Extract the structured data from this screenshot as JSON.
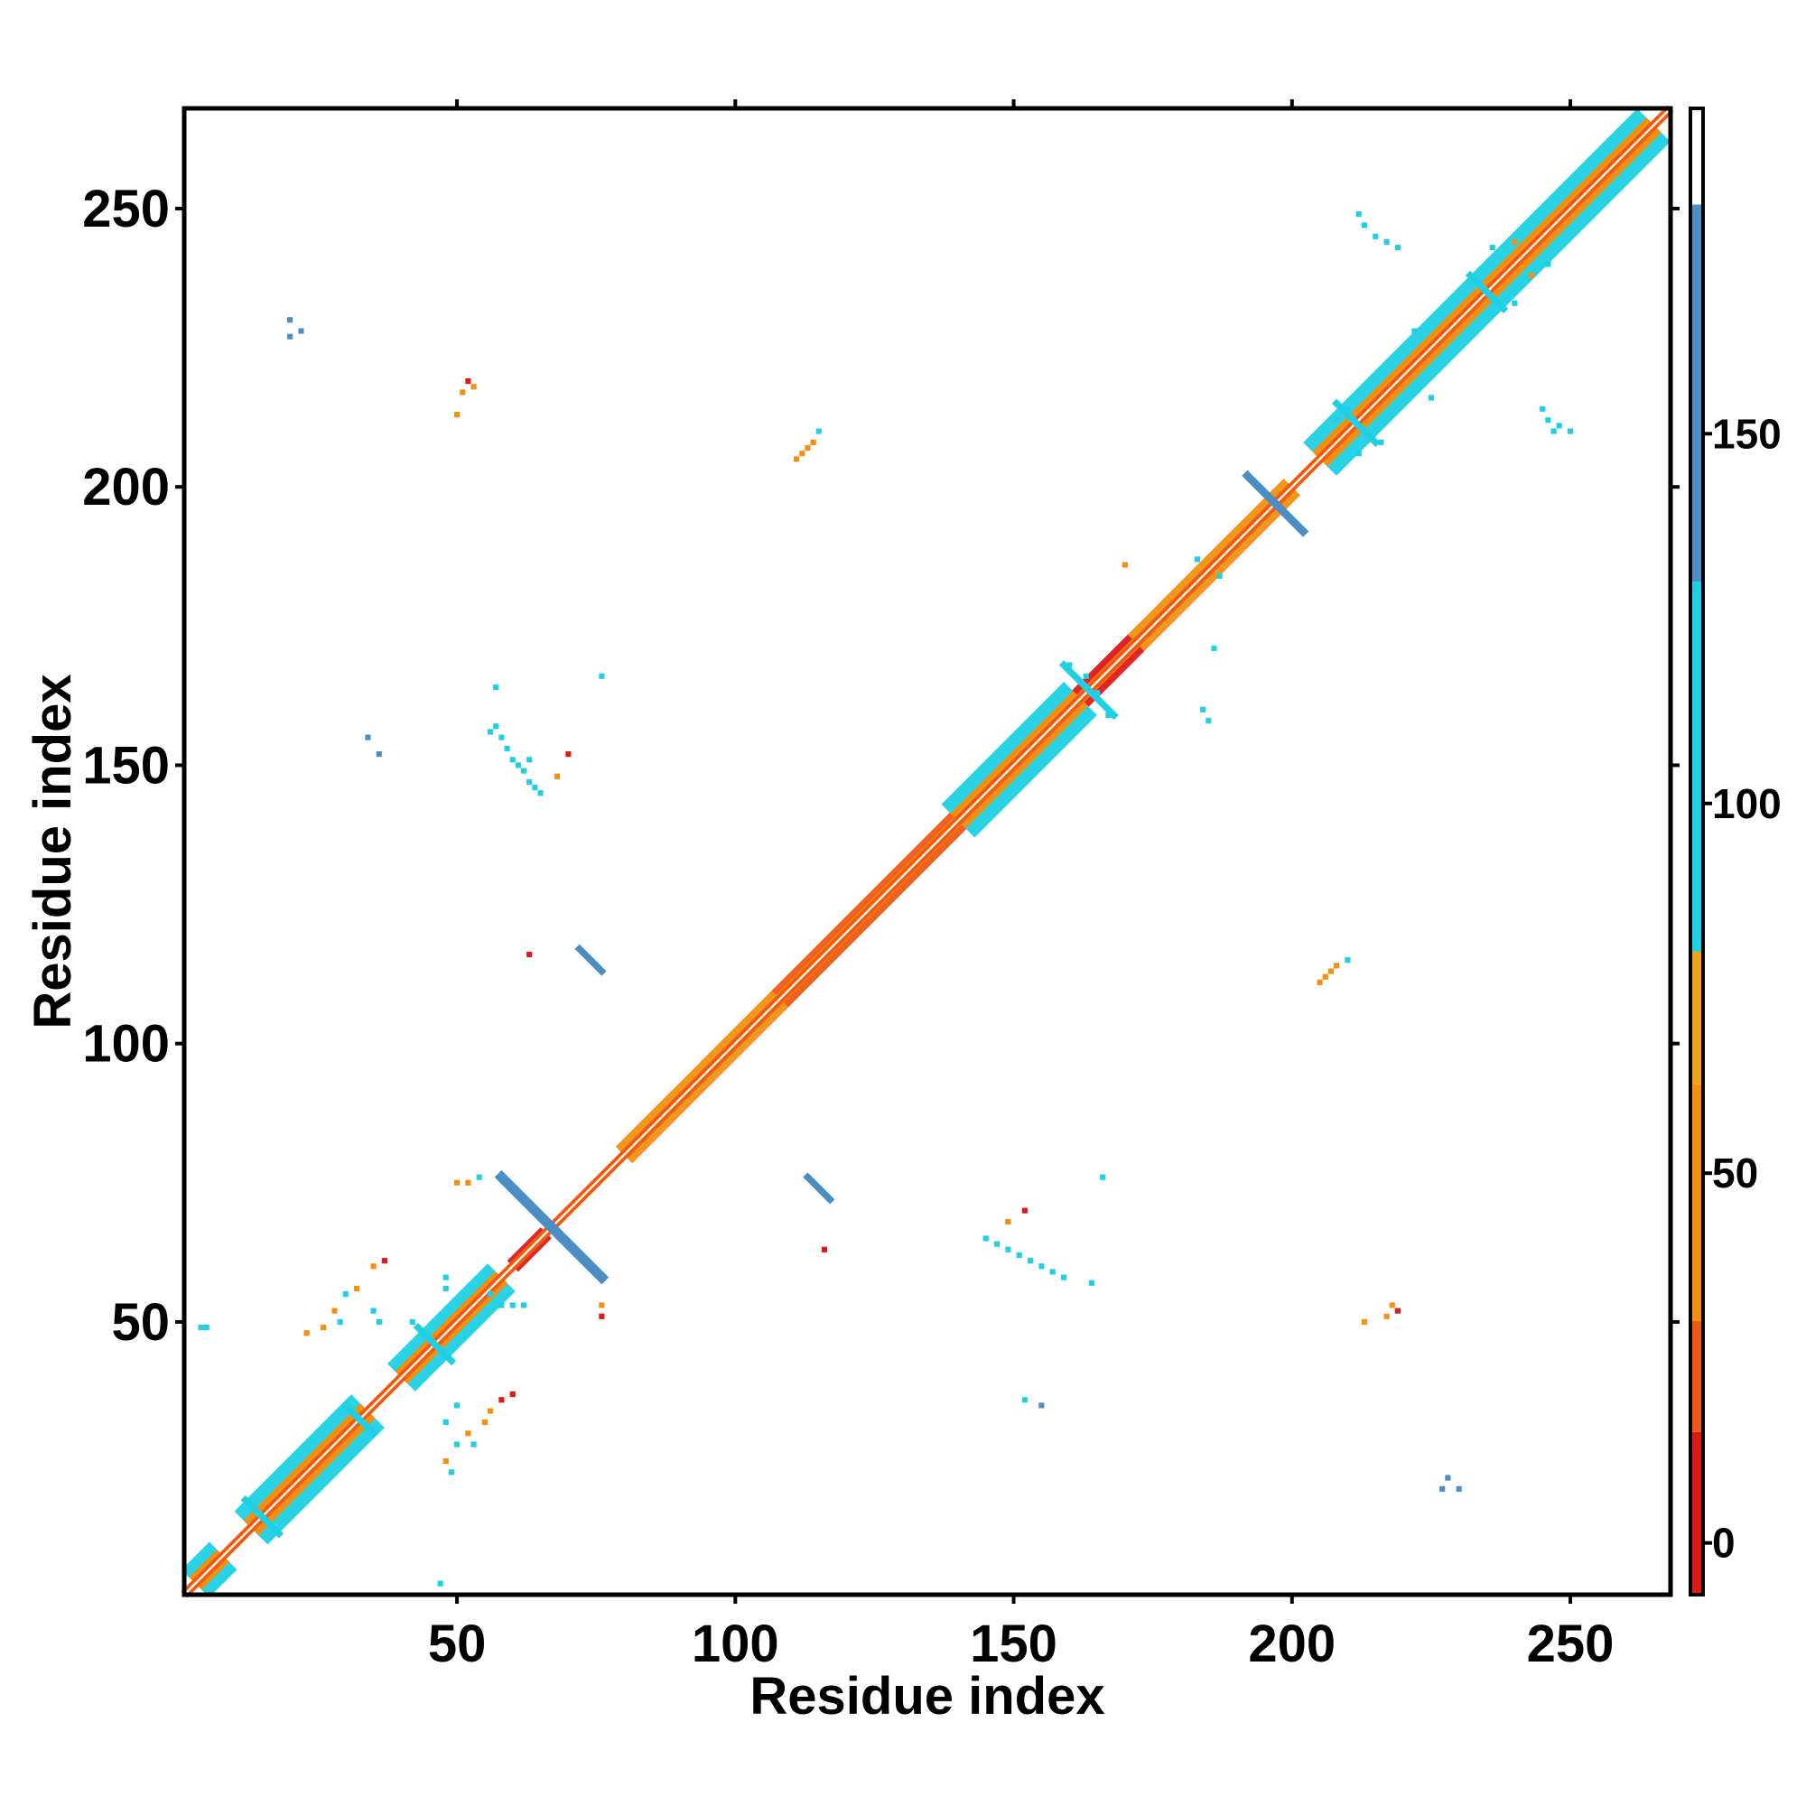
{
  "chart_data": {
    "type": "heatmap",
    "title": "",
    "xlabel": "Residue index",
    "ylabel": "Residue index",
    "xlim": [
      1,
      268
    ],
    "ylim": [
      1,
      268
    ],
    "x_ticks": [
      50,
      100,
      150,
      200,
      250
    ],
    "y_ticks": [
      50,
      100,
      150,
      200,
      250
    ],
    "grid": false,
    "colorbar": {
      "range": [
        -7,
        194
      ],
      "ticks": [
        0,
        50,
        100,
        150
      ],
      "segments": [
        {
          "from": -7,
          "to": 15,
          "color": "#dd1a1a"
        },
        {
          "from": 15,
          "to": 30,
          "color": "#ee5a14"
        },
        {
          "from": 30,
          "to": 62,
          "color": "#f39010"
        },
        {
          "from": 62,
          "to": 80,
          "color": "#efa41e"
        },
        {
          "from": 80,
          "to": 130,
          "color": "#1fd0e4"
        },
        {
          "from": 130,
          "to": 181,
          "color": "#4a8ec4"
        },
        {
          "from": 181,
          "to": 194,
          "color": "#ffffff"
        }
      ]
    },
    "diagonal": {
      "from": 1,
      "to": 268
    },
    "diagonal_blocks": [
      {
        "start": 3,
        "end": 8,
        "width": 5,
        "value": 100
      },
      {
        "start": 13,
        "end": 34,
        "width": 6,
        "value": 100
      },
      {
        "start": 40,
        "end": 58,
        "width": 5,
        "value": 100
      },
      {
        "start": 60,
        "end": 66,
        "width": 2,
        "value": 10
      },
      {
        "start": 80,
        "end": 108,
        "width": 3,
        "value": 50
      },
      {
        "start": 108,
        "end": 140,
        "width": 3,
        "value": 25
      },
      {
        "start": 140,
        "end": 162,
        "width": 6,
        "value": 100
      },
      {
        "start": 162,
        "end": 172,
        "width": 3,
        "value": 10
      },
      {
        "start": 172,
        "end": 200,
        "width": 3,
        "value": 50
      },
      {
        "start": 205,
        "end": 265,
        "width": 6,
        "value": 100
      }
    ],
    "cross_strands": [
      {
        "x1": 58,
        "y1": 76,
        "x2": 76,
        "y2": 58,
        "width": 1.5,
        "value": 150
      },
      {
        "x1": 192,
        "y1": 202,
        "x2": 202,
        "y2": 192,
        "width": 1.2,
        "value": 150
      },
      {
        "x1": 72,
        "y1": 117,
        "x2": 76,
        "y2": 113,
        "width": 1.0,
        "value": 150
      },
      {
        "x1": 113,
        "y1": 76,
        "x2": 117,
        "y2": 72,
        "width": 1.0,
        "value": 150
      },
      {
        "x1": 43,
        "y1": 49,
        "x2": 49,
        "y2": 43,
        "width": 1.0,
        "value": 100
      },
      {
        "x1": 159,
        "y1": 168,
        "x2": 168,
        "y2": 159,
        "width": 1.0,
        "value": 100
      },
      {
        "x1": 208,
        "y1": 215,
        "x2": 215,
        "y2": 208,
        "width": 1.0,
        "value": 100
      },
      {
        "x1": 232,
        "y1": 238,
        "x2": 238,
        "y2": 232,
        "width": 1.0,
        "value": 100
      },
      {
        "x1": 12,
        "y1": 18,
        "x2": 18,
        "y2": 12,
        "width": 1.0,
        "value": 100
      },
      {
        "x1": 30,
        "y1": 35,
        "x2": 35,
        "y2": 30,
        "width": 1.0,
        "value": 100
      }
    ],
    "off_diagonal_contacts": [
      {
        "x": 57,
        "y": 157,
        "value": 100
      },
      {
        "x": 58,
        "y": 155,
        "value": 100
      },
      {
        "x": 59,
        "y": 153,
        "value": 100
      },
      {
        "x": 60,
        "y": 151,
        "value": 100
      },
      {
        "x": 61,
        "y": 150,
        "value": 100
      },
      {
        "x": 62,
        "y": 149,
        "value": 100
      },
      {
        "x": 63,
        "y": 147,
        "value": 100
      },
      {
        "x": 64,
        "y": 146,
        "value": 100
      },
      {
        "x": 65,
        "y": 145,
        "value": 100
      },
      {
        "x": 57,
        "y": 164,
        "value": 100
      },
      {
        "x": 56,
        "y": 156,
        "value": 100
      },
      {
        "x": 63,
        "y": 151,
        "value": 100
      },
      {
        "x": 68,
        "y": 148,
        "value": 50
      },
      {
        "x": 70,
        "y": 152,
        "value": 10
      },
      {
        "x": 76,
        "y": 166,
        "value": 80
      },
      {
        "x": 145,
        "y": 65,
        "value": 100
      },
      {
        "x": 147,
        "y": 64,
        "value": 100
      },
      {
        "x": 149,
        "y": 63,
        "value": 100
      },
      {
        "x": 151,
        "y": 62,
        "value": 100
      },
      {
        "x": 153,
        "y": 61,
        "value": 100
      },
      {
        "x": 155,
        "y": 60,
        "value": 100
      },
      {
        "x": 157,
        "y": 59,
        "value": 100
      },
      {
        "x": 159,
        "y": 58,
        "value": 100
      },
      {
        "x": 164,
        "y": 57,
        "value": 100
      },
      {
        "x": 149,
        "y": 68,
        "value": 50
      },
      {
        "x": 152,
        "y": 70,
        "value": 10
      },
      {
        "x": 166,
        "y": 76,
        "value": 80
      },
      {
        "x": 111,
        "y": 205,
        "value": 50
      },
      {
        "x": 112,
        "y": 206,
        "value": 50
      },
      {
        "x": 113,
        "y": 207,
        "value": 50
      },
      {
        "x": 114,
        "y": 208,
        "value": 50
      },
      {
        "x": 115,
        "y": 210,
        "value": 80
      },
      {
        "x": 205,
        "y": 111,
        "value": 50
      },
      {
        "x": 206,
        "y": 112,
        "value": 50
      },
      {
        "x": 207,
        "y": 113,
        "value": 50
      },
      {
        "x": 208,
        "y": 114,
        "value": 50
      },
      {
        "x": 210,
        "y": 115,
        "value": 80
      },
      {
        "x": 50,
        "y": 213,
        "value": 50
      },
      {
        "x": 51,
        "y": 217,
        "value": 50
      },
      {
        "x": 52,
        "y": 219,
        "value": 10
      },
      {
        "x": 53,
        "y": 218,
        "value": 50
      },
      {
        "x": 213,
        "y": 50,
        "value": 50
      },
      {
        "x": 217,
        "y": 51,
        "value": 50
      },
      {
        "x": 219,
        "y": 52,
        "value": 10
      },
      {
        "x": 218,
        "y": 53,
        "value": 50
      },
      {
        "x": 20,
        "y": 230,
        "value": 150
      },
      {
        "x": 22,
        "y": 228,
        "value": 150
      },
      {
        "x": 20,
        "y": 227,
        "value": 150
      },
      {
        "x": 230,
        "y": 20,
        "value": 150
      },
      {
        "x": 228,
        "y": 22,
        "value": 150
      },
      {
        "x": 227,
        "y": 20,
        "value": 150
      },
      {
        "x": 213,
        "y": 247,
        "value": 100
      },
      {
        "x": 215,
        "y": 245,
        "value": 100
      },
      {
        "x": 217,
        "y": 244,
        "value": 100
      },
      {
        "x": 219,
        "y": 243,
        "value": 100
      },
      {
        "x": 212,
        "y": 249,
        "value": 80
      },
      {
        "x": 245,
        "y": 214,
        "value": 100
      },
      {
        "x": 246,
        "y": 212,
        "value": 100
      },
      {
        "x": 247,
        "y": 210,
        "value": 100
      },
      {
        "x": 248,
        "y": 211,
        "value": 100
      },
      {
        "x": 250,
        "y": 210,
        "value": 80
      },
      {
        "x": 187,
        "y": 184,
        "value": 100
      },
      {
        "x": 183,
        "y": 187,
        "value": 100
      },
      {
        "x": 184,
        "y": 160,
        "value": 100
      },
      {
        "x": 185,
        "y": 158,
        "value": 100
      },
      {
        "x": 186,
        "y": 171,
        "value": 80
      },
      {
        "x": 170,
        "y": 186,
        "value": 50
      },
      {
        "x": 4,
        "y": 49,
        "value": 100
      },
      {
        "x": 5,
        "y": 49,
        "value": 100
      },
      {
        "x": 34,
        "y": 155,
        "value": 150
      },
      {
        "x": 36,
        "y": 152,
        "value": 150
      },
      {
        "x": 152,
        "y": 36,
        "value": 100
      },
      {
        "x": 155,
        "y": 35,
        "value": 150
      },
      {
        "x": 47,
        "y": 3,
        "value": 100
      },
      {
        "x": 63,
        "y": 116,
        "value": 10
      },
      {
        "x": 116,
        "y": 63,
        "value": 10
      },
      {
        "x": 50,
        "y": 75,
        "value": 50
      },
      {
        "x": 52,
        "y": 75,
        "value": 50
      },
      {
        "x": 54,
        "y": 76,
        "value": 80
      },
      {
        "x": 76,
        "y": 53,
        "value": 50
      },
      {
        "x": 76,
        "y": 51,
        "value": 10
      },
      {
        "x": 30,
        "y": 55,
        "value": 80
      },
      {
        "x": 32,
        "y": 56,
        "value": 50
      },
      {
        "x": 28,
        "y": 52,
        "value": 50
      },
      {
        "x": 29,
        "y": 50,
        "value": 80
      },
      {
        "x": 23,
        "y": 48,
        "value": 50
      },
      {
        "x": 26,
        "y": 49,
        "value": 50
      },
      {
        "x": 35,
        "y": 60,
        "value": 50
      },
      {
        "x": 37,
        "y": 61,
        "value": 10
      },
      {
        "x": 35,
        "y": 52,
        "value": 100
      },
      {
        "x": 36,
        "y": 50,
        "value": 100
      },
      {
        "x": 48,
        "y": 32,
        "value": 100
      },
      {
        "x": 50,
        "y": 35,
        "value": 100
      },
      {
        "x": 52,
        "y": 30,
        "value": 50
      },
      {
        "x": 50,
        "y": 28,
        "value": 80
      },
      {
        "x": 48,
        "y": 25,
        "value": 50
      },
      {
        "x": 49,
        "y": 23,
        "value": 80
      },
      {
        "x": 55,
        "y": 32,
        "value": 50
      },
      {
        "x": 56,
        "y": 34,
        "value": 50
      },
      {
        "x": 58,
        "y": 36,
        "value": 10
      },
      {
        "x": 60,
        "y": 37,
        "value": 10
      },
      {
        "x": 53,
        "y": 28,
        "value": 80
      },
      {
        "x": 42,
        "y": 50,
        "value": 100
      },
      {
        "x": 44,
        "y": 48,
        "value": 100
      },
      {
        "x": 58,
        "y": 53,
        "value": 100
      },
      {
        "x": 60,
        "y": 53,
        "value": 100
      },
      {
        "x": 62,
        "y": 53,
        "value": 100
      },
      {
        "x": 56,
        "y": 55,
        "value": 100
      },
      {
        "x": 48,
        "y": 56,
        "value": 100
      },
      {
        "x": 48,
        "y": 58,
        "value": 100
      },
      {
        "x": 246,
        "y": 240,
        "value": 100
      },
      {
        "x": 240,
        "y": 233,
        "value": 100
      },
      {
        "x": 225,
        "y": 216,
        "value": 100
      },
      {
        "x": 222,
        "y": 228,
        "value": 100
      },
      {
        "x": 236,
        "y": 243,
        "value": 100
      },
      {
        "x": 240,
        "y": 244,
        "value": 50
      },
      {
        "x": 243,
        "y": 238,
        "value": 50
      },
      {
        "x": 210,
        "y": 214,
        "value": 100
      },
      {
        "x": 208,
        "y": 212,
        "value": 100
      },
      {
        "x": 212,
        "y": 206,
        "value": 100
      },
      {
        "x": 216,
        "y": 208,
        "value": 100
      },
      {
        "x": 163,
        "y": 166,
        "value": 100
      },
      {
        "x": 165,
        "y": 163,
        "value": 100
      },
      {
        "x": 160,
        "y": 168,
        "value": 100
      },
      {
        "x": 167,
        "y": 159,
        "value": 100
      }
    ]
  }
}
